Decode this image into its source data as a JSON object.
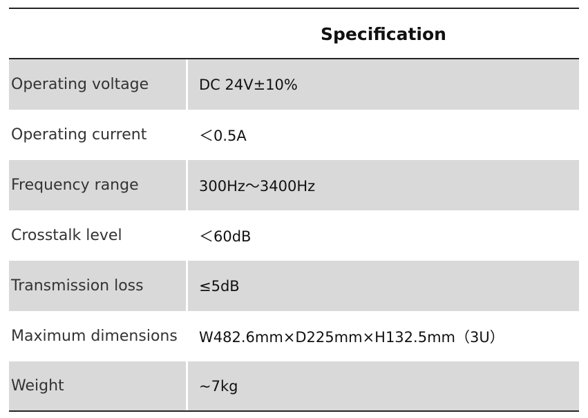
{
  "table": {
    "header": "Specification",
    "rows": [
      [
        "Operating voltage",
        "DC 24V±10%"
      ],
      [
        "Operating current",
        "＜0.5A"
      ],
      [
        "Frequency range",
        "300Hz～3400Hz"
      ],
      [
        "Crosstalk level",
        "＜60dB"
      ],
      [
        "Transmission loss",
        "≤5dB"
      ],
      [
        "Maximum dimensions",
        "W482.6mm×D225mm×H132.5mm（3U）"
      ],
      [
        "Weight",
        "~7kg"
      ]
    ]
  }
}
